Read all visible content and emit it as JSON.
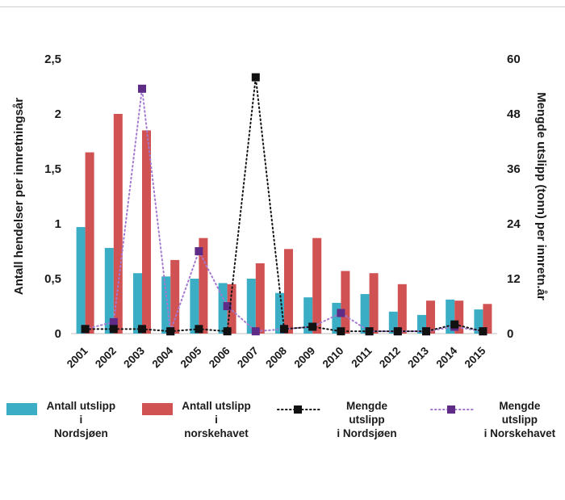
{
  "chart_data": {
    "type": "bar",
    "subtype": "combo-bar-line-dual-axis",
    "title": "",
    "categories": [
      "2001",
      "2002",
      "2003",
      "2004",
      "2005",
      "2006",
      "2007",
      "2008",
      "2009",
      "2010",
      "2011",
      "2012",
      "2013",
      "2014",
      "2015"
    ],
    "left_axis": {
      "label": "Antall hendelser per innretningsår",
      "ticks": [
        "0",
        "0,5",
        "1",
        "1,5",
        "2",
        "2,5"
      ],
      "min": 0,
      "max": 2.5
    },
    "right_axis": {
      "label": "Mengde utslipp (tonn) per innretn.år",
      "ticks": [
        "0",
        "12",
        "24",
        "36",
        "48",
        "60"
      ],
      "min": 0,
      "max": 60
    },
    "grid": "off",
    "legend_position": "bottom",
    "series": [
      {
        "name": "Antall utslipp i Nordsjøen",
        "type": "bar",
        "axis": "left",
        "color": "#3BAEC6",
        "values": [
          0.97,
          0.78,
          0.55,
          0.52,
          0.5,
          0.46,
          0.5,
          0.37,
          0.33,
          0.28,
          0.36,
          0.2,
          0.17,
          0.31,
          0.22
        ]
      },
      {
        "name": "Antall utslipp i norskehavet",
        "type": "bar",
        "axis": "left",
        "color": "#D15252",
        "values": [
          1.65,
          2.0,
          1.85,
          0.67,
          0.87,
          0.45,
          0.64,
          0.77,
          0.87,
          0.57,
          0.55,
          0.45,
          0.3,
          0.3,
          0.27
        ]
      },
      {
        "name": "Mengde utslipp i Nordsjøen",
        "type": "line",
        "style": "dotted",
        "axis": "right",
        "color": "#141414",
        "marker_color": "#111111",
        "values": [
          1,
          1,
          1,
          0.5,
          1,
          0.5,
          56,
          1,
          1.5,
          0.5,
          0.5,
          0.5,
          0.5,
          2,
          0.5
        ]
      },
      {
        "name": "Mengde utslipp i Norskehavet",
        "type": "line",
        "style": "dotted",
        "axis": "right",
        "color": "#A47AD1",
        "marker_color": "#5E2B87",
        "values": [
          1,
          2.5,
          53.5,
          0.5,
          18,
          6,
          0.5,
          1,
          1.5,
          4.5,
          0.5,
          0.5,
          0.5,
          1.5,
          0.5
        ]
      }
    ],
    "axis_line_color": "#c0c0c0"
  },
  "legend": {
    "items": [
      {
        "label": "Antall utslipp i\nNordsjøen",
        "swatch": "bar",
        "series": 0
      },
      {
        "label": "Antall utslipp i\nnorskehavet",
        "swatch": "bar",
        "series": 1
      },
      {
        "label": "Mengde utslipp\ni Nordsjøen",
        "swatch": "line",
        "series": 2
      },
      {
        "label": "Mengde utslipp\ni Norskehavet",
        "swatch": "line",
        "series": 3
      }
    ]
  }
}
